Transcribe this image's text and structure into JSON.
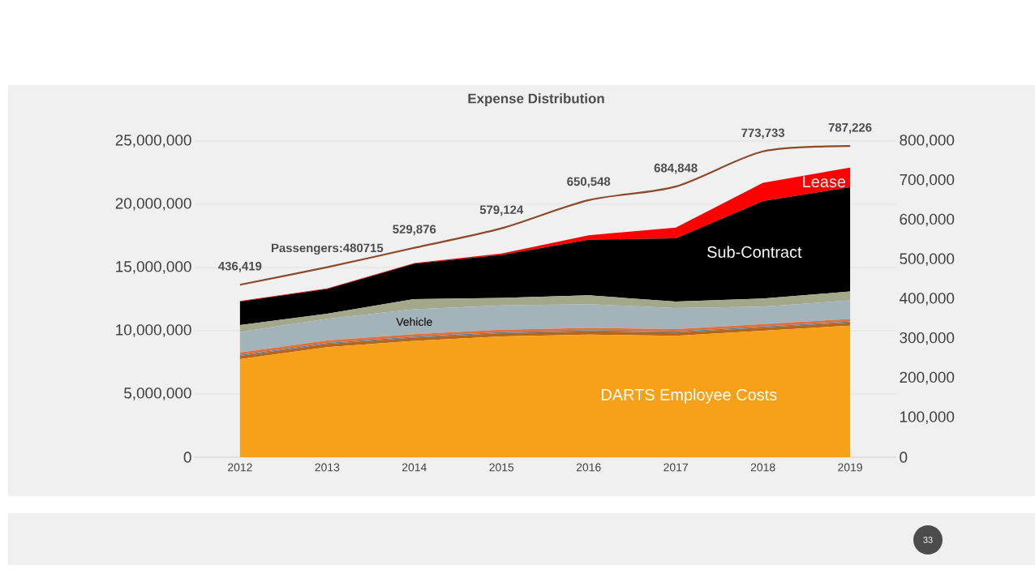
{
  "chart_data": {
    "type": "area",
    "title": "Expense Distribution",
    "stacked": true,
    "grid": "y",
    "categories": [
      "2012",
      "2013",
      "2014",
      "2015",
      "2016",
      "2017",
      "2018",
      "2019"
    ],
    "ylim": [
      0,
      25000000
    ],
    "yticks": [
      0,
      {
        "value": 5000000,
        "label": "5,000,000"
      },
      {
        "value": 10000000,
        "label": "10,000,000"
      },
      {
        "value": 15000000,
        "label": "15,000,000"
      },
      {
        "value": 20000000,
        "label": "20,000,000"
      },
      {
        "value": 25000000,
        "label": "25,000,000"
      }
    ],
    "y2lim": [
      0,
      800000
    ],
    "y2ticks": [
      0,
      {
        "value": 100000,
        "label": "100,000"
      },
      {
        "value": 200000,
        "label": "200,000"
      },
      {
        "value": 300000,
        "label": "300,000"
      },
      {
        "value": 400000,
        "label": "400,000"
      },
      {
        "value": 500000,
        "label": "500,000"
      },
      {
        "value": 600000,
        "label": "600,000"
      },
      {
        "value": 700000,
        "label": "700,000"
      },
      {
        "value": 800000,
        "label": "800,000"
      }
    ],
    "series": [
      {
        "name": "DARTS Employee Costs",
        "color": "#f7a11a",
        "values": [
          7760000,
          8700000,
          9200000,
          9550000,
          9700000,
          9600000,
          10000000,
          10400000
        ]
      },
      {
        "color": "#b5651d",
        "values": [
          250000,
          250000,
          250000,
          250000,
          250000,
          250000,
          250000,
          250000
        ]
      },
      {
        "color": "#5b7f95",
        "values": [
          80000,
          80000,
          80000,
          80000,
          80000,
          80000,
          80000,
          80000
        ]
      },
      {
        "color": "#e2703a",
        "values": [
          200000,
          200000,
          200000,
          200000,
          200000,
          200000,
          200000,
          200000
        ]
      },
      {
        "name": "Vehicle",
        "color": "#a3b3ba",
        "values": [
          1610000,
          1720000,
          1970000,
          1920000,
          1870000,
          1670000,
          1370000,
          1470000
        ]
      },
      {
        "color": "#a3a88a",
        "values": [
          550000,
          400000,
          800000,
          600000,
          700000,
          500000,
          650000,
          700000
        ]
      },
      {
        "name": "Sub-Contract",
        "color": "#000000",
        "values": [
          1850000,
          1950000,
          2800000,
          3400000,
          4400000,
          5000000,
          7700000,
          8250000
        ]
      },
      {
        "name": "Lease",
        "color": "#ff0000",
        "values": [
          50000,
          50000,
          50000,
          100000,
          350000,
          850000,
          1450000,
          1550000
        ]
      },
      {
        "type": "line",
        "axis": "y2",
        "color": "#8b4a2b",
        "values": [
          436419,
          480715,
          529876,
          579124,
          650548,
          684848,
          773733,
          787226
        ],
        "value_labels": [
          "436,419",
          "Passengers:480715",
          "529,876",
          "579,124",
          "650,548",
          "684,848",
          "773,733",
          "787,226"
        ]
      }
    ],
    "annotations": [
      "33"
    ]
  }
}
